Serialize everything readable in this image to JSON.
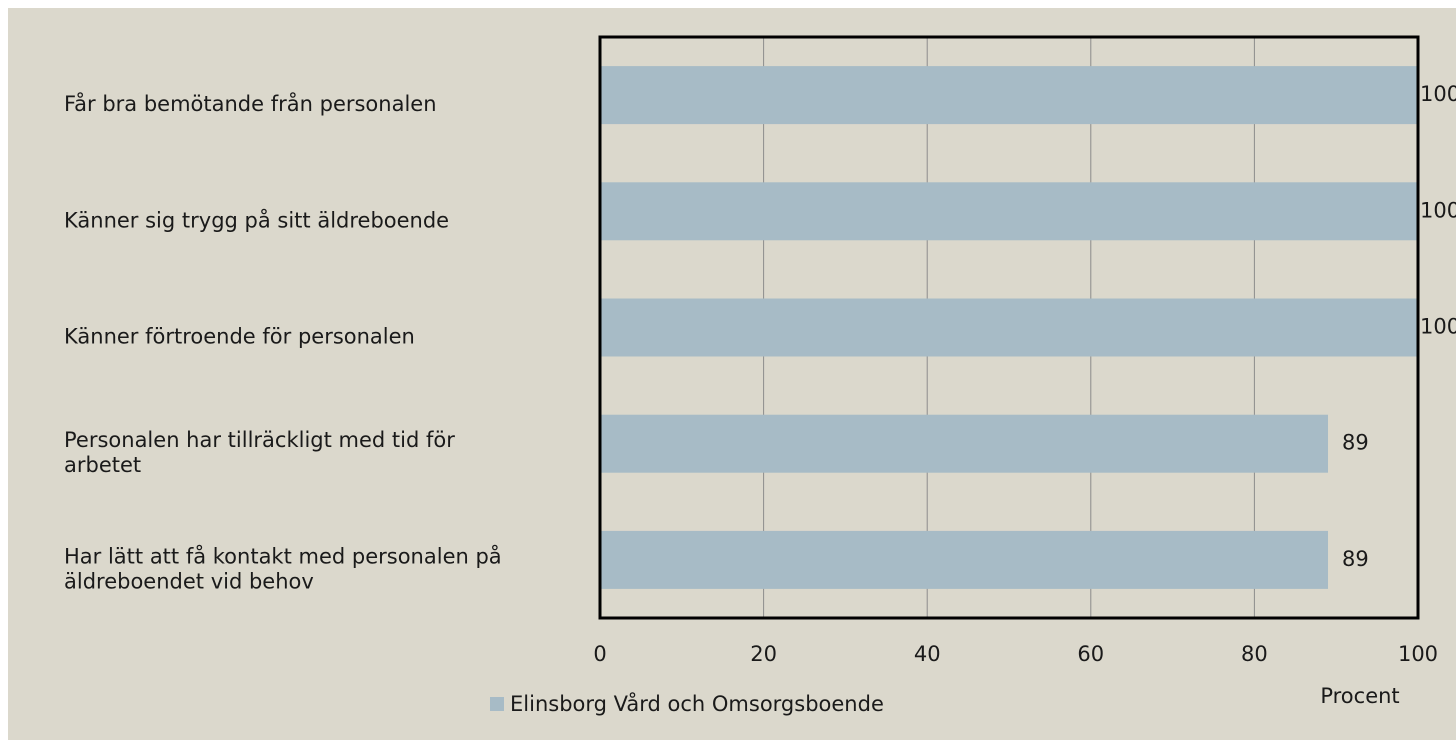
{
  "chart_data": {
    "type": "bar",
    "orientation": "horizontal",
    "categories": [
      "Får bra bemötande från personalen",
      "Känner sig trygg på sitt äldreboende",
      "Känner förtroende för personalen",
      "Personalen har tillräckligt med tid för arbetet",
      "Har lätt att få kontakt med personalen på äldreboendet vid behov"
    ],
    "series": [
      {
        "name": "Elinsborg Vård och Omsorgsboende",
        "color": "#a7bbc6",
        "values": [
          100,
          100,
          100,
          89,
          89
        ]
      }
    ],
    "xlim": [
      0,
      100
    ],
    "xticks": [
      0,
      20,
      40,
      60,
      80,
      100
    ],
    "xlabel": "Procent",
    "grid": true,
    "legend": "bottom"
  }
}
